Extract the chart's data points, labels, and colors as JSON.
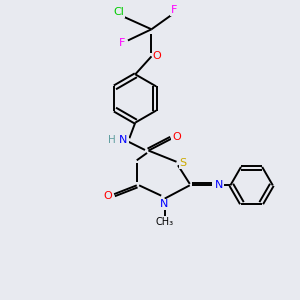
{
  "background_color": "#e8eaf0",
  "atom_colors": {
    "C": "#000000",
    "H": "#5f9ea0",
    "N": "#0000ff",
    "O": "#ff0000",
    "S": "#ccaa00",
    "F": "#ff00ff",
    "Cl": "#00cc00"
  },
  "bond_color": "#000000",
  "bond_width": 1.4,
  "figsize": [
    3.0,
    3.0
  ],
  "dpi": 100
}
